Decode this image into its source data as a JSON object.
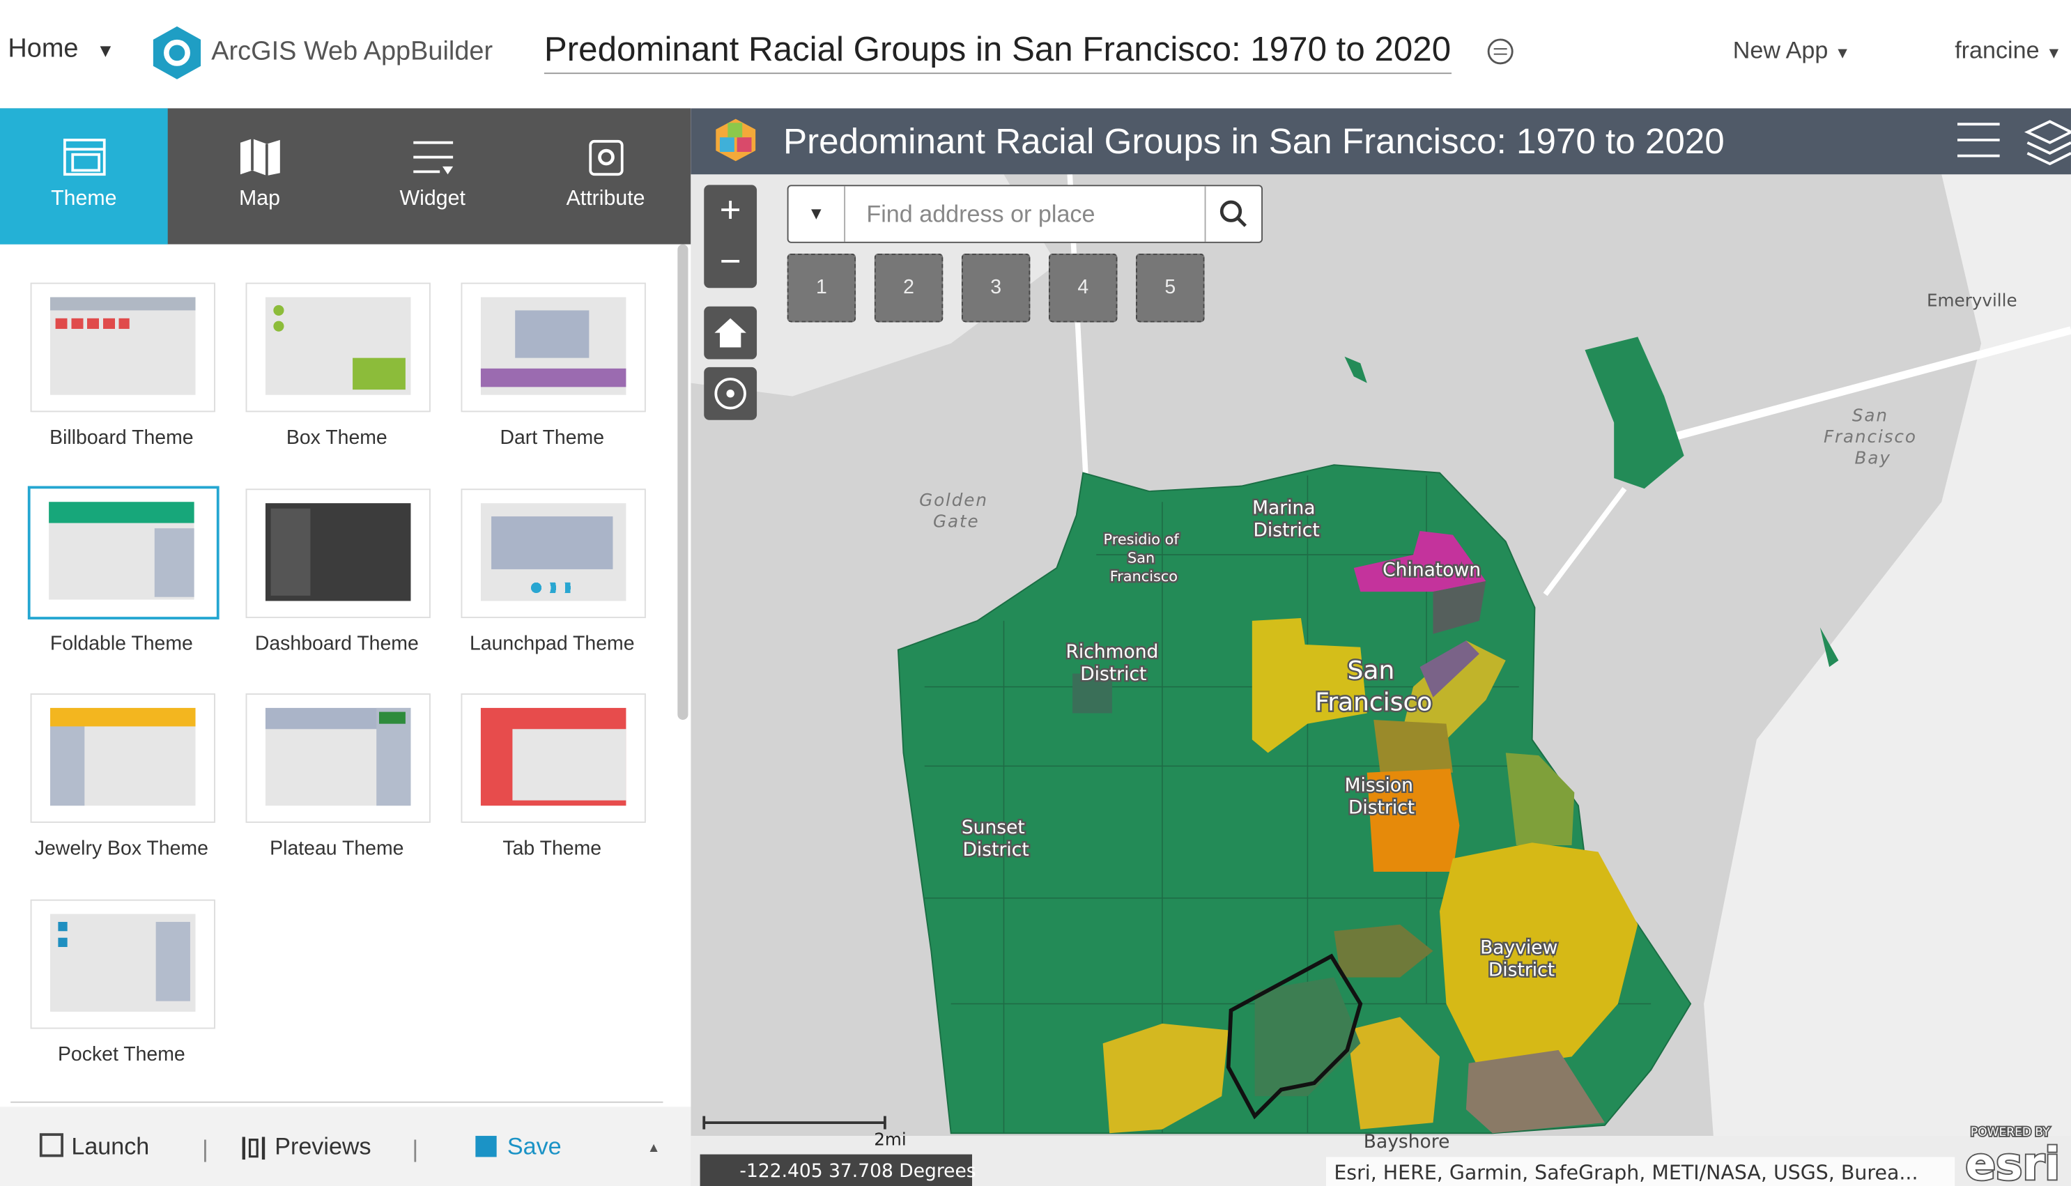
{
  "header": {
    "home": "Home",
    "app_name": "ArcGIS Web AppBuilder",
    "title": "Predominant Racial Groups in San Francisco: 1970 to 2020",
    "new_app": "New App",
    "user": "francine"
  },
  "tabs": [
    "Theme",
    "Map",
    "Widget",
    "Attribute"
  ],
  "themes": [
    "Billboard Theme",
    "Box Theme",
    "Dart Theme",
    "Foldable Theme",
    "Dashboard Theme",
    "Launchpad Theme",
    "Jewelry Box Theme",
    "Plateau Theme",
    "Tab Theme",
    "Pocket Theme"
  ],
  "footer": {
    "launch": "Launch",
    "previews": "Previews",
    "save": "Save"
  },
  "map": {
    "title": "Predominant Racial Groups in San Francisco: 1970 to 2020",
    "search_placeholder": "Find address or place",
    "bookmarks": [
      "1",
      "2",
      "3",
      "4",
      "5"
    ],
    "labels": {
      "golden_gate": [
        "Golden",
        "Gate"
      ],
      "presidio": [
        "Presidio of",
        "San",
        "Francisco"
      ],
      "marina": [
        "Marina",
        "District"
      ],
      "chinatown": "Chinatown",
      "richmond": [
        "Richmond",
        "District"
      ],
      "san_francisco": [
        "San",
        "Francisco"
      ],
      "mission": [
        "Mission",
        "District"
      ],
      "sunset": [
        "Sunset",
        "District"
      ],
      "bayview": [
        "Bayview",
        "District"
      ],
      "bayshore": "Bayshore",
      "emeryville": "Emeryville",
      "bay": [
        "San",
        "Francisco",
        "Bay"
      ]
    },
    "scale": "2mi",
    "coordinates": "-122.405 37.708 Degrees",
    "attribution": "Esri, HERE, Garmin, SafeGraph, METI/NASA, USGS, Burea...",
    "powered_by": "POWERED BY",
    "esri": "esri"
  }
}
